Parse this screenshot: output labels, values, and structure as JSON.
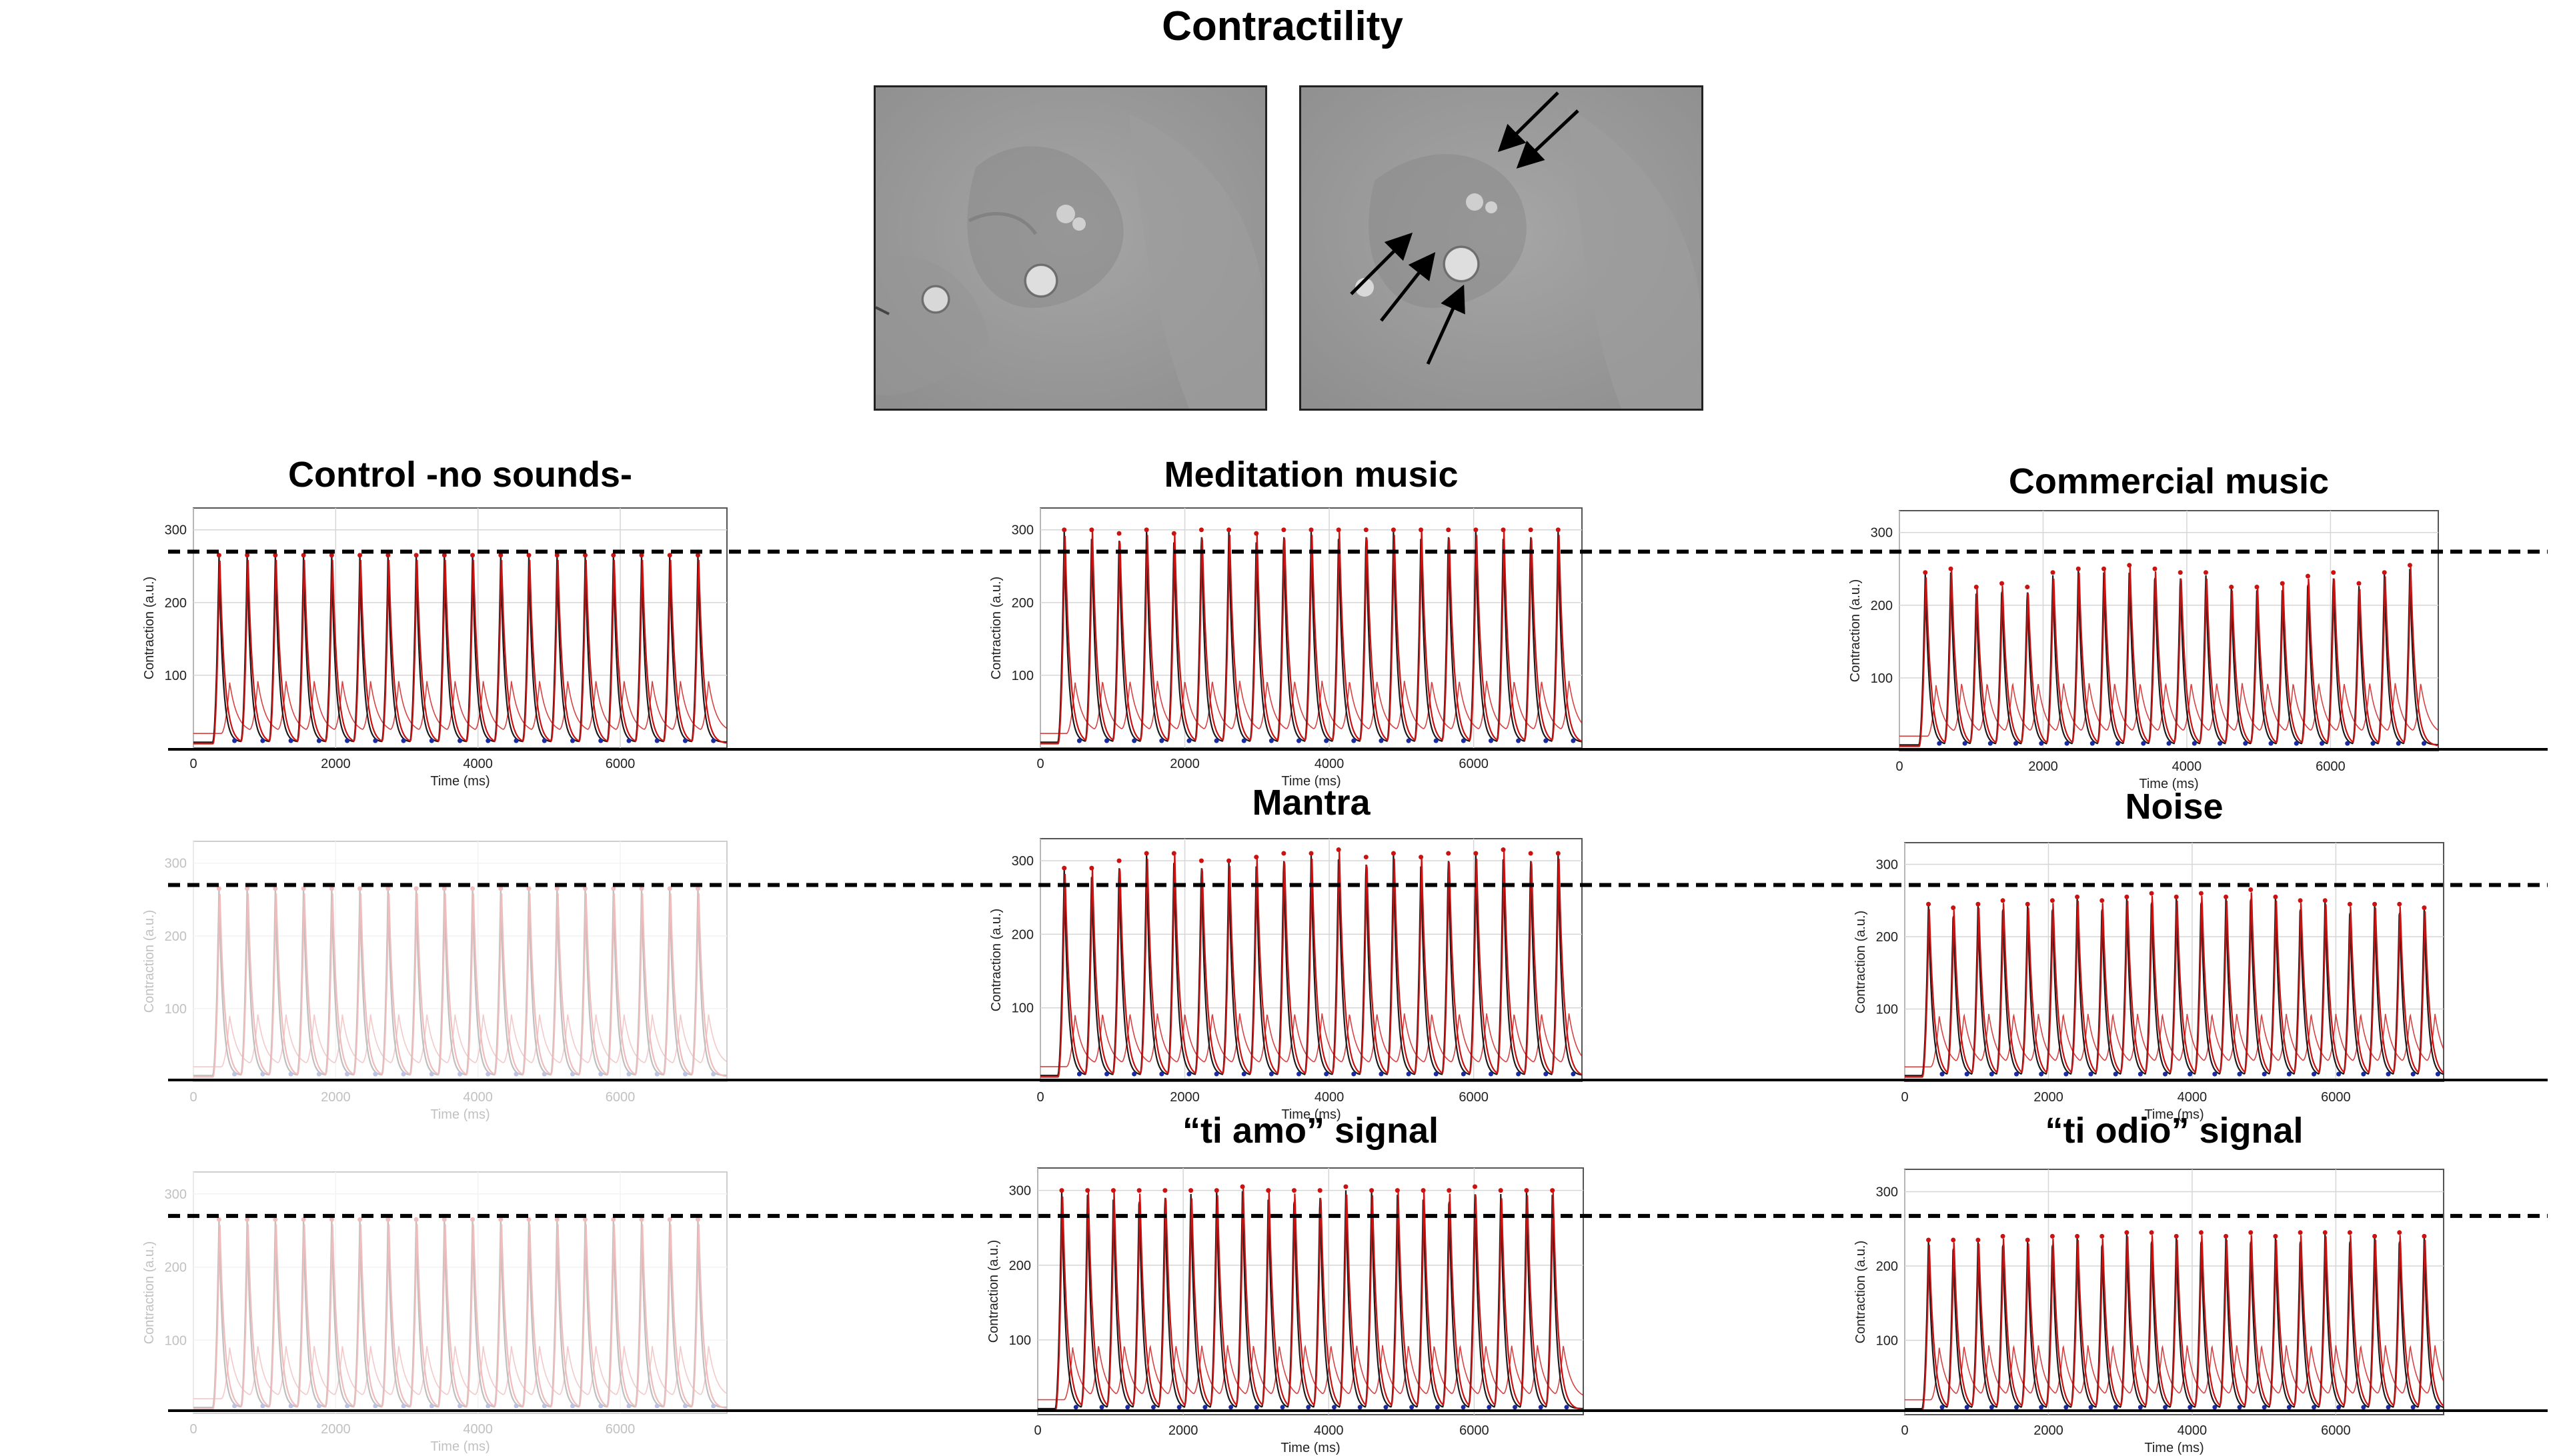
{
  "figure": {
    "title": "Contractility",
    "images": [
      {
        "name": "cell-image-before",
        "arrows": 0
      },
      {
        "name": "cell-image-after",
        "arrows": 5
      }
    ]
  },
  "colors": {
    "raw_trace": "#1a1a1a",
    "fitted_trace": "#cc1111",
    "minima": "#1a2aa0",
    "threshold": "#000000"
  },
  "chart_data": [
    {
      "type": "line",
      "title": "Control -no sounds-",
      "faded": false,
      "xlabel": "Time (ms)",
      "ylabel": "Contraction (a.u.)",
      "xlim": [
        0,
        7500
      ],
      "ylim": [
        0,
        330
      ],
      "xticks": [
        0,
        2000,
        4000,
        6000
      ],
      "yticks": [
        100,
        200,
        300
      ],
      "beats": 18,
      "first_peak_ms": 360,
      "period_ms": 396,
      "peak_values": [
        265,
        265,
        265,
        265,
        265,
        265,
        265,
        265,
        265,
        265,
        265,
        265,
        265,
        265,
        265,
        265,
        265,
        265
      ],
      "threshold": 270
    },
    {
      "type": "line",
      "title": "Meditation music",
      "faded": false,
      "xlabel": "Time (ms)",
      "ylabel": "Contraction (a.u.)",
      "xlim": [
        0,
        7500
      ],
      "ylim": [
        0,
        330
      ],
      "xticks": [
        0,
        2000,
        4000,
        6000
      ],
      "yticks": [
        100,
        200,
        300
      ],
      "beats": 19,
      "first_peak_ms": 330,
      "period_ms": 380,
      "peak_values": [
        300,
        300,
        295,
        300,
        295,
        300,
        300,
        295,
        300,
        300,
        300,
        300,
        300,
        300,
        300,
        300,
        300,
        300,
        300
      ],
      "threshold": 270
    },
    {
      "type": "line",
      "title": "Commercial music",
      "faded": false,
      "xlabel": "Time (ms)",
      "ylabel": "Contraction (a.u.)",
      "xlim": [
        0,
        7500
      ],
      "ylim": [
        0,
        330
      ],
      "xticks": [
        0,
        2000,
        4000,
        6000
      ],
      "yticks": [
        100,
        200,
        300
      ],
      "beats": 20,
      "first_peak_ms": 360,
      "period_ms": 355,
      "peak_values": [
        245,
        250,
        225,
        230,
        225,
        245,
        250,
        250,
        255,
        250,
        245,
        245,
        225,
        225,
        230,
        240,
        245,
        230,
        245,
        255
      ],
      "threshold": 270
    },
    {
      "type": "line",
      "title": "",
      "faded": true,
      "xlabel": "Time (ms)",
      "ylabel": "Contraction (a.u.)",
      "xlim": [
        0,
        7500
      ],
      "ylim": [
        0,
        330
      ],
      "xticks": [
        0,
        2000,
        4000,
        6000
      ],
      "yticks": [
        100,
        200,
        300
      ],
      "beats": 18,
      "first_peak_ms": 360,
      "period_ms": 396,
      "peak_values": [
        265,
        265,
        265,
        265,
        265,
        265,
        265,
        265,
        265,
        265,
        265,
        265,
        265,
        265,
        265,
        265,
        265,
        265
      ],
      "threshold": 270
    },
    {
      "type": "line",
      "title": "Mantra",
      "faded": false,
      "xlabel": "Time (ms)",
      "ylabel": "Contraction (a.u.)",
      "xlim": [
        0,
        7500
      ],
      "ylim": [
        0,
        330
      ],
      "xticks": [
        0,
        2000,
        4000,
        6000
      ],
      "yticks": [
        100,
        200,
        300
      ],
      "beats": 19,
      "first_peak_ms": 330,
      "period_ms": 380,
      "peak_values": [
        290,
        290,
        300,
        310,
        310,
        300,
        300,
        305,
        310,
        310,
        315,
        305,
        310,
        305,
        310,
        310,
        315,
        310,
        310
      ],
      "threshold": 270
    },
    {
      "type": "line",
      "title": "Noise",
      "faded": false,
      "xlabel": "Time (ms)",
      "ylabel": "Contraction (a.u.)",
      "xlim": [
        0,
        7500
      ],
      "ylim": [
        0,
        330
      ],
      "xticks": [
        0,
        2000,
        4000,
        6000
      ],
      "yticks": [
        100,
        200,
        300
      ],
      "beats": 21,
      "first_peak_ms": 330,
      "period_ms": 345,
      "peak_values": [
        245,
        240,
        245,
        250,
        245,
        250,
        255,
        250,
        255,
        260,
        255,
        260,
        255,
        265,
        255,
        250,
        250,
        245,
        245,
        245,
        240
      ],
      "threshold": 270
    },
    {
      "type": "line",
      "title": "",
      "faded": true,
      "xlabel": "Time (ms)",
      "ylabel": "Contraction (a.u.)",
      "xlim": [
        0,
        7500
      ],
      "ylim": [
        0,
        330
      ],
      "xticks": [
        0,
        2000,
        4000,
        6000
      ],
      "yticks": [
        100,
        200,
        300
      ],
      "beats": 18,
      "first_peak_ms": 360,
      "period_ms": 396,
      "peak_values": [
        265,
        265,
        265,
        265,
        265,
        265,
        265,
        265,
        265,
        265,
        265,
        265,
        265,
        265,
        265,
        265,
        265,
        265
      ],
      "threshold": 270
    },
    {
      "type": "line",
      "title": "“ti amo” signal",
      "faded": false,
      "xlabel": "Time (ms)",
      "ylabel": "Contraction (a.u.)",
      "xlim": [
        0,
        7500
      ],
      "ylim": [
        0,
        330
      ],
      "xticks": [
        0,
        2000,
        4000,
        6000
      ],
      "yticks": [
        100,
        200,
        300
      ],
      "beats": 20,
      "first_peak_ms": 330,
      "period_ms": 355,
      "peak_values": [
        300,
        300,
        300,
        300,
        300,
        300,
        300,
        305,
        300,
        300,
        300,
        305,
        300,
        300,
        300,
        300,
        305,
        300,
        300,
        300
      ],
      "threshold": 270
    },
    {
      "type": "line",
      "title": "“ti odio” signal",
      "faded": false,
      "xlabel": "Time (ms)",
      "ylabel": "Contraction (a.u.)",
      "xlim": [
        0,
        7500
      ],
      "ylim": [
        0,
        330
      ],
      "xticks": [
        0,
        2000,
        4000,
        6000
      ],
      "yticks": [
        100,
        200,
        300
      ],
      "beats": 21,
      "first_peak_ms": 330,
      "period_ms": 345,
      "peak_values": [
        235,
        235,
        235,
        240,
        235,
        240,
        240,
        240,
        245,
        245,
        240,
        245,
        240,
        245,
        240,
        245,
        245,
        245,
        240,
        245,
        240
      ],
      "threshold": 270
    }
  ]
}
